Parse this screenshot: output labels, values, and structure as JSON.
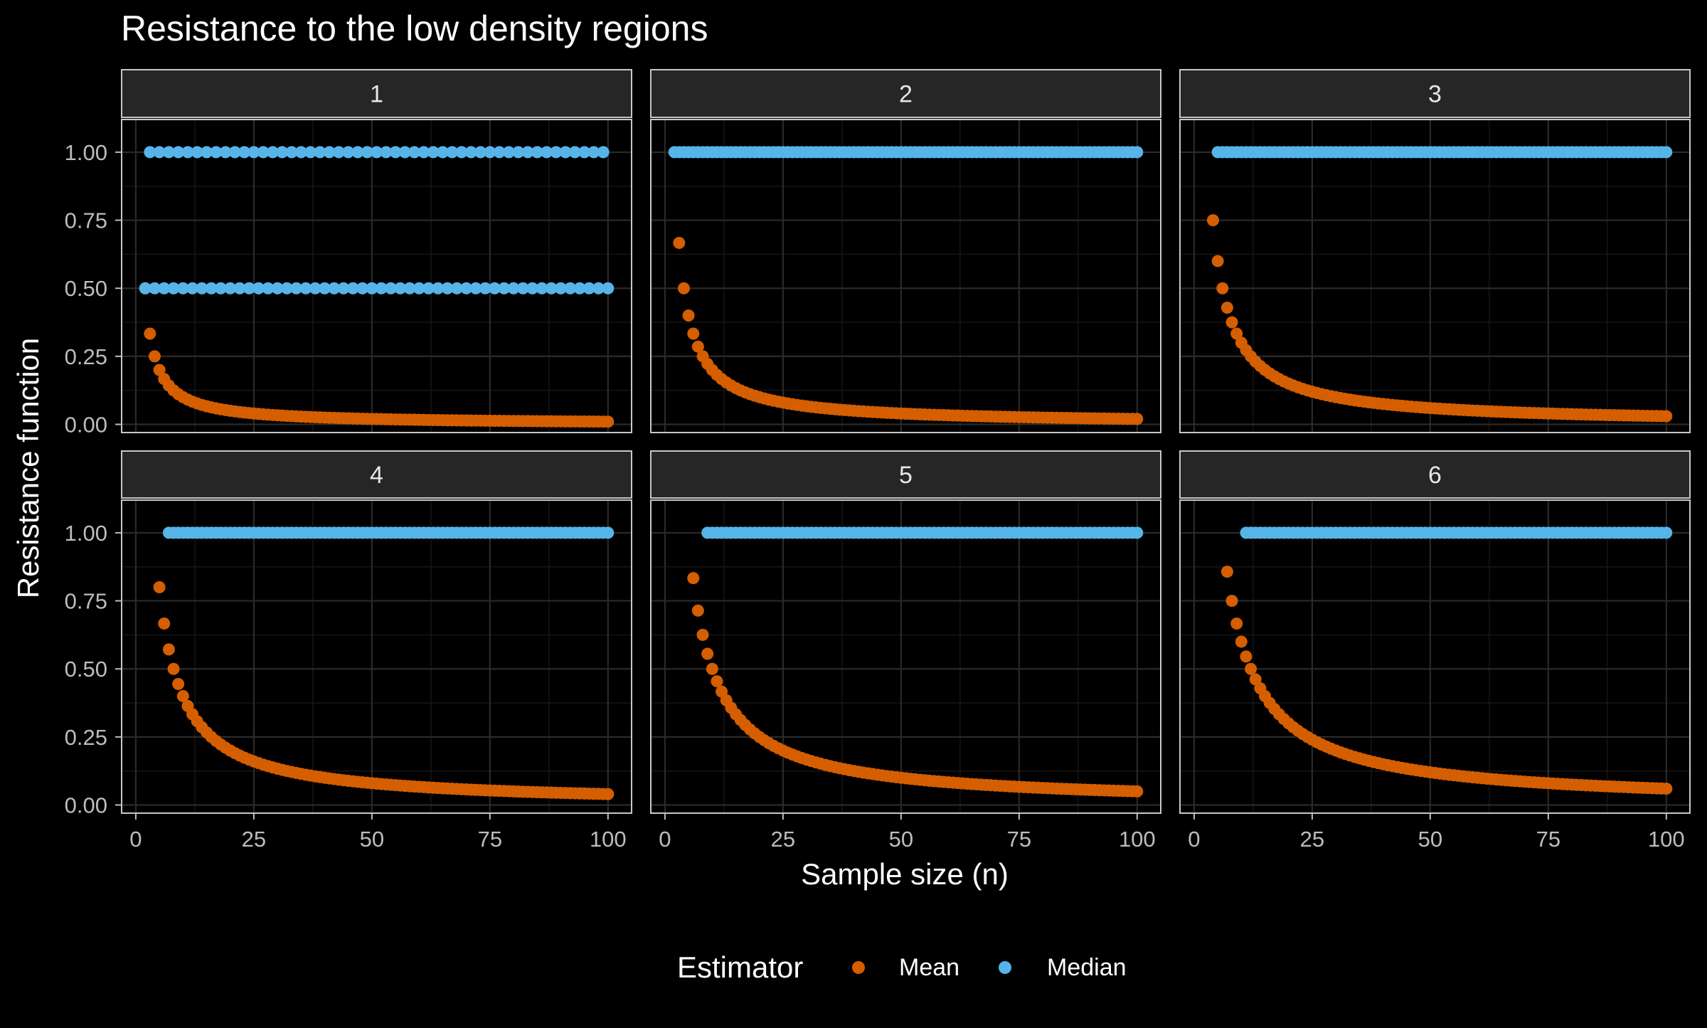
{
  "chart_data": {
    "type": "scatter",
    "title": "Resistance to the low density regions",
    "xlabel": "Sample size (n)",
    "ylabel": "Resistance function",
    "xlim": [
      -3,
      105
    ],
    "ylim": [
      -0.03,
      1.12
    ],
    "x_ticks": [
      0,
      25,
      50,
      75,
      100
    ],
    "y_ticks": [
      0,
      0.25,
      0.5,
      0.75,
      1
    ],
    "x_tick_labels": [
      "0",
      "25",
      "50",
      "75",
      "100"
    ],
    "y_tick_labels": [
      "0.00",
      "0.25",
      "0.50",
      "0.75",
      "1.00"
    ],
    "grid": true,
    "facet_layout": {
      "rows": 2,
      "cols": 3
    },
    "facets": [
      {
        "label": "1",
        "k": 1
      },
      {
        "label": "2",
        "k": 2
      },
      {
        "label": "3",
        "k": 3
      },
      {
        "label": "4",
        "k": 4
      },
      {
        "label": "5",
        "k": 5
      },
      {
        "label": "6",
        "k": 6
      }
    ],
    "n_range": [
      1,
      100
    ],
    "series_rule": {
      "Mean": "k / n, plotted for n > k",
      "Median": "equals 0.5 for even n and 1.00 for odd n in facet 1; equals 1.00 in facets 2–6, plotted for n ≥ 2k−1 (n ≥ 2 in facet 2)"
    },
    "legend": {
      "title": "Estimator",
      "position": "bottom",
      "entries": [
        {
          "name": "Mean",
          "color": "#D55E00"
        },
        {
          "name": "Median",
          "color": "#56B4E9"
        }
      ]
    },
    "colors": {
      "background": "#000000",
      "panel": "#000000",
      "strip": "#262626",
      "strip_text": "#E6E6E6",
      "panel_border": "#C8C8C8",
      "grid_major": "#2A2A2A",
      "grid_minor": "#161616",
      "tick_text": "#BDBDBD",
      "text": "#FFFFFF"
    }
  }
}
